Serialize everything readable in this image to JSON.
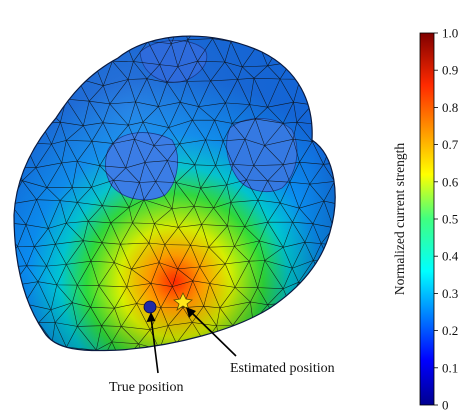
{
  "figure": {
    "annotations": {
      "true_position": "True position",
      "estimated_position": "Estimated  position"
    },
    "colorbar": {
      "title": "Normalized current strength",
      "ticks": [
        "1.0",
        "0.9",
        "0.8",
        "0.7",
        "0.6",
        "0.5",
        "0.4",
        "0.3",
        "0.2",
        "0.1",
        "0"
      ],
      "range": [
        0,
        1
      ],
      "colormap": "jet"
    },
    "markers": {
      "true_color": "#1f2aa8",
      "estimated_color": "#ffe51a"
    }
  }
}
